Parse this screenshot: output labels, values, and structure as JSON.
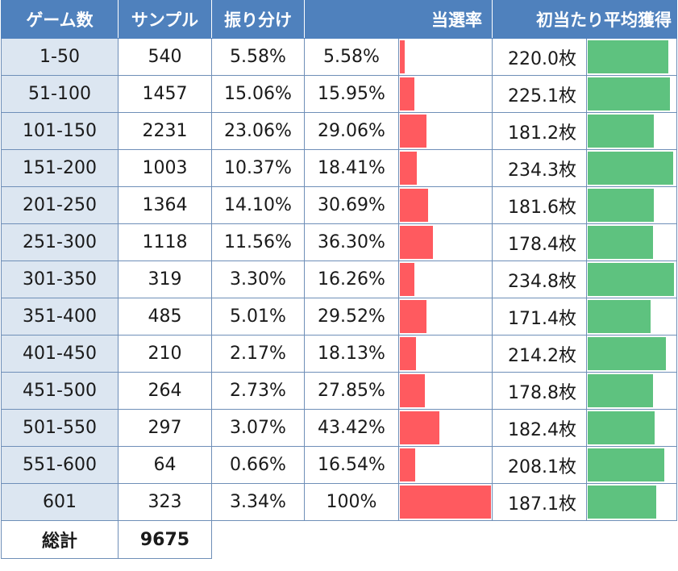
{
  "chart_data": {
    "type": "table",
    "headers": [
      "ゲーム数",
      "サンプル",
      "振り分け",
      "当選率",
      "初当たり平均獲得"
    ],
    "rows": [
      {
        "range": "1-50",
        "sample": "540",
        "ratio": "5.58%",
        "rate": "5.58%",
        "rate_value": 5.58,
        "avg": "220.0枚",
        "avg_value": 220.0
      },
      {
        "range": "51-100",
        "sample": "1457",
        "ratio": "15.06%",
        "rate": "15.95%",
        "rate_value": 15.95,
        "avg": "225.1枚",
        "avg_value": 225.1
      },
      {
        "range": "101-150",
        "sample": "2231",
        "ratio": "23.06%",
        "rate": "29.06%",
        "rate_value": 29.06,
        "avg": "181.2枚",
        "avg_value": 181.2
      },
      {
        "range": "151-200",
        "sample": "1003",
        "ratio": "10.37%",
        "rate": "18.41%",
        "rate_value": 18.41,
        "avg": "234.3枚",
        "avg_value": 234.3
      },
      {
        "range": "201-250",
        "sample": "1364",
        "ratio": "14.10%",
        "rate": "30.69%",
        "rate_value": 30.69,
        "avg": "181.6枚",
        "avg_value": 181.6
      },
      {
        "range": "251-300",
        "sample": "1118",
        "ratio": "11.56%",
        "rate": "36.30%",
        "rate_value": 36.3,
        "avg": "178.4枚",
        "avg_value": 178.4
      },
      {
        "range": "301-350",
        "sample": "319",
        "ratio": "3.30%",
        "rate": "16.26%",
        "rate_value": 16.26,
        "avg": "234.8枚",
        "avg_value": 234.8
      },
      {
        "range": "351-400",
        "sample": "485",
        "ratio": "5.01%",
        "rate": "29.52%",
        "rate_value": 29.52,
        "avg": "171.4枚",
        "avg_value": 171.4
      },
      {
        "range": "401-450",
        "sample": "210",
        "ratio": "2.17%",
        "rate": "18.13%",
        "rate_value": 18.13,
        "avg": "214.2枚",
        "avg_value": 214.2
      },
      {
        "range": "451-500",
        "sample": "264",
        "ratio": "2.73%",
        "rate": "27.85%",
        "rate_value": 27.85,
        "avg": "178.8枚",
        "avg_value": 178.8
      },
      {
        "range": "501-550",
        "sample": "297",
        "ratio": "3.07%",
        "rate": "43.42%",
        "rate_value": 43.42,
        "avg": "182.4枚",
        "avg_value": 182.4
      },
      {
        "range": "551-600",
        "sample": "64",
        "ratio": "0.66%",
        "rate": "16.54%",
        "rate_value": 16.54,
        "avg": "208.1枚",
        "avg_value": 208.1
      },
      {
        "range": "601",
        "sample": "323",
        "ratio": "3.34%",
        "rate": "100%",
        "rate_value": 100,
        "avg": "187.1枚",
        "avg_value": 187.1
      }
    ],
    "total": {
      "label": "総計",
      "sample": "9675"
    },
    "rate_bar_color": "#ff5a5f",
    "avg_bar_color": "#5ec27f",
    "header_color": "#4f81bd",
    "range_column_color": "#dce6f1"
  }
}
